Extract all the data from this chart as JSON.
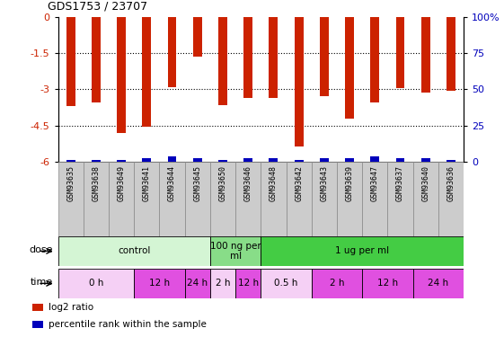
{
  "title": "GDS1753 / 23707",
  "samples": [
    "GSM93635",
    "GSM93638",
    "GSM93649",
    "GSM93641",
    "GSM93644",
    "GSM93645",
    "GSM93650",
    "GSM93646",
    "GSM93648",
    "GSM93642",
    "GSM93643",
    "GSM93639",
    "GSM93647",
    "GSM93637",
    "GSM93640",
    "GSM93636"
  ],
  "log2_ratio": [
    -3.7,
    -3.55,
    -4.8,
    -4.55,
    -2.9,
    -1.65,
    -3.65,
    -3.35,
    -3.35,
    -5.35,
    -3.3,
    -4.2,
    -3.55,
    -2.95,
    -3.15,
    -3.05
  ],
  "percentile_rank": [
    1.5,
    1.5,
    1.5,
    2.5,
    3.5,
    2.5,
    1.5,
    2.5,
    2.5,
    1.5,
    2.5,
    2.5,
    3.5,
    2.5,
    2.5,
    1.5
  ],
  "ylim_left": [
    -6,
    0
  ],
  "ylim_right": [
    0,
    100
  ],
  "yticks_left": [
    0,
    -1.5,
    -3,
    -4.5,
    -6
  ],
  "yticks_right": [
    0,
    25,
    50,
    75,
    100
  ],
  "dose_groups": [
    {
      "label": "control",
      "start": 0,
      "end": 6,
      "color": "#d4f5d4"
    },
    {
      "label": "100 ng per\nml",
      "start": 6,
      "end": 8,
      "color": "#88dd88"
    },
    {
      "label": "1 ug per ml",
      "start": 8,
      "end": 16,
      "color": "#44cc44"
    }
  ],
  "time_groups": [
    {
      "label": "0 h",
      "start": 0,
      "end": 3,
      "color": "#f5d0f5"
    },
    {
      "label": "12 h",
      "start": 3,
      "end": 5,
      "color": "#e050e0"
    },
    {
      "label": "24 h",
      "start": 5,
      "end": 6,
      "color": "#e050e0"
    },
    {
      "label": "2 h",
      "start": 6,
      "end": 7,
      "color": "#f5d0f5"
    },
    {
      "label": "12 h",
      "start": 7,
      "end": 8,
      "color": "#e050e0"
    },
    {
      "label": "0.5 h",
      "start": 8,
      "end": 10,
      "color": "#f5d0f5"
    },
    {
      "label": "2 h",
      "start": 10,
      "end": 12,
      "color": "#e050e0"
    },
    {
      "label": "12 h",
      "start": 12,
      "end": 14,
      "color": "#e050e0"
    },
    {
      "label": "24 h",
      "start": 14,
      "end": 16,
      "color": "#e050e0"
    }
  ],
  "bar_color_red": "#cc2200",
  "bar_color_blue": "#0000bb",
  "tick_label_color_left": "#cc2200",
  "tick_label_color_right": "#0000bb",
  "legend_items": [
    {
      "label": "log2 ratio",
      "color": "#cc2200"
    },
    {
      "label": "percentile rank within the sample",
      "color": "#0000bb"
    }
  ],
  "sample_box_color": "#cccccc",
  "sample_box_edge": "#888888"
}
